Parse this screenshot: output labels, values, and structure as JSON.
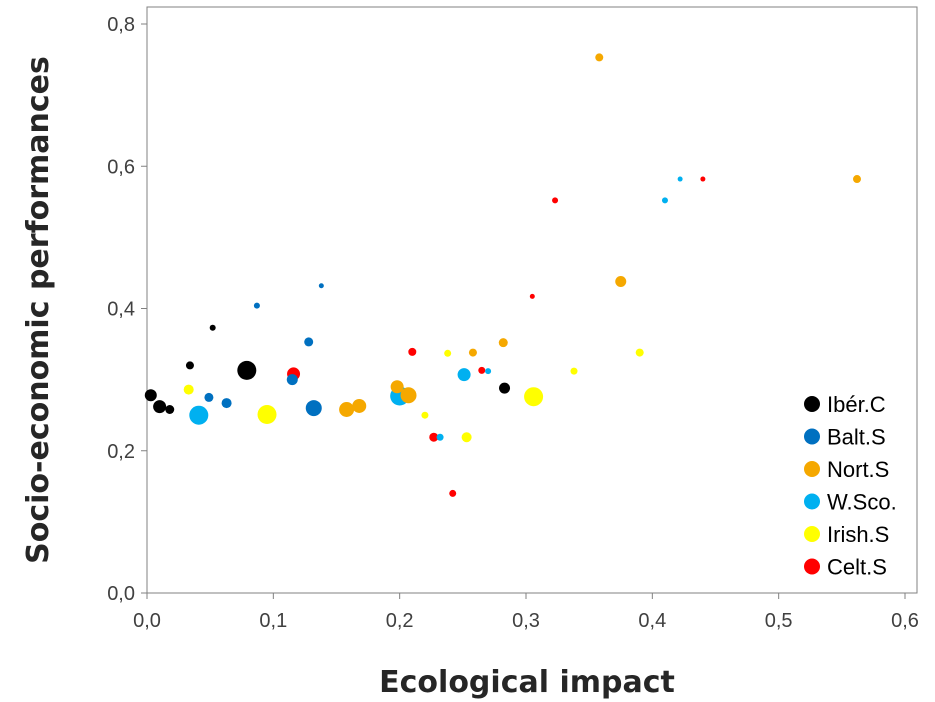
{
  "chart_data": {
    "type": "scatter",
    "xlabel": "Ecological impact",
    "ylabel": "Socio-economic performances",
    "xlim": [
      0,
      0.6
    ],
    "ylim": [
      0,
      0.8
    ],
    "xticks": [
      0,
      0.1,
      0.2,
      0.3,
      0.4,
      0.5,
      0.6
    ],
    "xtick_labels": [
      "0,0",
      "0,1",
      "0,2",
      "0,3",
      "0,4",
      "0,5",
      "0,6"
    ],
    "yticks": [
      0,
      0.2,
      0.4,
      0.6,
      0.8
    ],
    "ytick_labels": [
      "0,0",
      "0,2",
      "0,4",
      "0,6",
      "0,8"
    ],
    "grid": false,
    "legend_position": "bottom-right",
    "series": [
      {
        "name": "Ibér.C",
        "color": "#000000",
        "points": [
          {
            "x": 0.003,
            "y": 0.278,
            "s": 11
          },
          {
            "x": 0.01,
            "y": 0.262,
            "s": 12
          },
          {
            "x": 0.018,
            "y": 0.258,
            "s": 8
          },
          {
            "x": 0.034,
            "y": 0.32,
            "s": 7
          },
          {
            "x": 0.052,
            "y": 0.373,
            "s": 5
          },
          {
            "x": 0.079,
            "y": 0.313,
            "s": 18
          },
          {
            "x": 0.283,
            "y": 0.288,
            "s": 10
          }
        ]
      },
      {
        "name": "Balt.S",
        "color": "#0070c0",
        "points": [
          {
            "x": 0.049,
            "y": 0.275,
            "s": 8
          },
          {
            "x": 0.063,
            "y": 0.267,
            "s": 9
          },
          {
            "x": 0.087,
            "y": 0.404,
            "s": 5
          },
          {
            "x": 0.115,
            "y": 0.3,
            "s": 10
          },
          {
            "x": 0.128,
            "y": 0.353,
            "s": 8
          },
          {
            "x": 0.132,
            "y": 0.26,
            "s": 15
          },
          {
            "x": 0.138,
            "y": 0.432,
            "s": 4
          }
        ]
      },
      {
        "name": "Nort.S",
        "color": "#f5a800",
        "points": [
          {
            "x": 0.158,
            "y": 0.258,
            "s": 14
          },
          {
            "x": 0.168,
            "y": 0.263,
            "s": 13
          },
          {
            "x": 0.198,
            "y": 0.29,
            "s": 12
          },
          {
            "x": 0.207,
            "y": 0.278,
            "s": 15
          },
          {
            "x": 0.258,
            "y": 0.338,
            "s": 7
          },
          {
            "x": 0.282,
            "y": 0.352,
            "s": 8
          },
          {
            "x": 0.358,
            "y": 0.753,
            "s": 7
          },
          {
            "x": 0.375,
            "y": 0.438,
            "s": 10
          },
          {
            "x": 0.562,
            "y": 0.582,
            "s": 7
          }
        ]
      },
      {
        "name": "W.Sco.",
        "color": "#00b0f0",
        "points": [
          {
            "x": 0.041,
            "y": 0.25,
            "s": 18
          },
          {
            "x": 0.2,
            "y": 0.277,
            "s": 18
          },
          {
            "x": 0.232,
            "y": 0.219,
            "s": 6
          },
          {
            "x": 0.251,
            "y": 0.307,
            "s": 12
          },
          {
            "x": 0.27,
            "y": 0.312,
            "s": 5
          },
          {
            "x": 0.41,
            "y": 0.552,
            "s": 5
          },
          {
            "x": 0.422,
            "y": 0.582,
            "s": 4
          }
        ]
      },
      {
        "name": "Irish.S",
        "color": "#ffff00",
        "points": [
          {
            "x": 0.033,
            "y": 0.286,
            "s": 9
          },
          {
            "x": 0.095,
            "y": 0.251,
            "s": 18
          },
          {
            "x": 0.22,
            "y": 0.25,
            "s": 6
          },
          {
            "x": 0.238,
            "y": 0.337,
            "s": 6
          },
          {
            "x": 0.253,
            "y": 0.219,
            "s": 9
          },
          {
            "x": 0.306,
            "y": 0.276,
            "s": 18
          },
          {
            "x": 0.338,
            "y": 0.312,
            "s": 6
          },
          {
            "x": 0.39,
            "y": 0.338,
            "s": 7
          }
        ]
      },
      {
        "name": "Celt.S",
        "color": "#ff0000",
        "points": [
          {
            "x": 0.116,
            "y": 0.308,
            "s": 12
          },
          {
            "x": 0.21,
            "y": 0.339,
            "s": 7
          },
          {
            "x": 0.227,
            "y": 0.219,
            "s": 8
          },
          {
            "x": 0.242,
            "y": 0.14,
            "s": 6
          },
          {
            "x": 0.265,
            "y": 0.313,
            "s": 6
          },
          {
            "x": 0.305,
            "y": 0.417,
            "s": 4
          },
          {
            "x": 0.323,
            "y": 0.552,
            "s": 5
          },
          {
            "x": 0.44,
            "y": 0.582,
            "s": 4
          }
        ]
      }
    ]
  }
}
